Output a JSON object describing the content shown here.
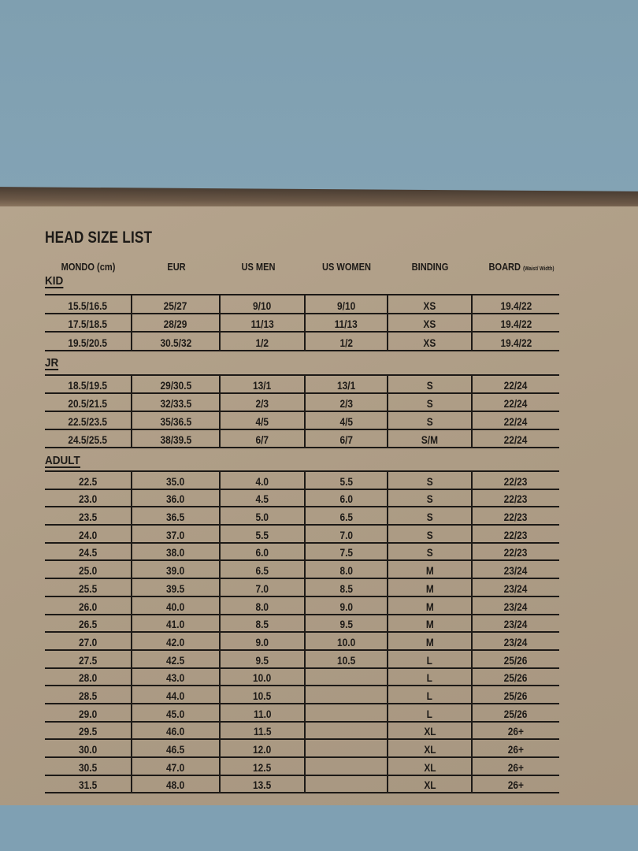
{
  "title": "HEAD SIZE LIST",
  "headers": [
    "MONDO (cm)",
    "EUR",
    "US MEN",
    "US WOMEN",
    "BINDING",
    "BOARD"
  ],
  "board_subheader": "(Waist/ Width)",
  "sections": [
    {
      "label": "KID",
      "rows": [
        [
          "15.5/16.5",
          "25/27",
          "9/10",
          "9/10",
          "XS",
          "19.4/22"
        ],
        [
          "17.5/18.5",
          "28/29",
          "11/13",
          "11/13",
          "XS",
          "19.4/22"
        ],
        [
          "19.5/20.5",
          "30.5/32",
          "1/2",
          "1/2",
          "XS",
          "19.4/22"
        ]
      ]
    },
    {
      "label": "JR",
      "rows": [
        [
          "18.5/19.5",
          "29/30.5",
          "13/1",
          "13/1",
          "S",
          "22/24"
        ],
        [
          "20.5/21.5",
          "32/33.5",
          "2/3",
          "2/3",
          "S",
          "22/24"
        ],
        [
          "22.5/23.5",
          "35/36.5",
          "4/5",
          "4/5",
          "S",
          "22/24"
        ],
        [
          "24.5/25.5",
          "38/39.5",
          "6/7",
          "6/7",
          "S/M",
          "22/24"
        ]
      ]
    },
    {
      "label": "ADULT",
      "rows": [
        [
          "22.5",
          "35.0",
          "4.0",
          "5.5",
          "S",
          "22/23"
        ],
        [
          "23.0",
          "36.0",
          "4.5",
          "6.0",
          "S",
          "22/23"
        ],
        [
          "23.5",
          "36.5",
          "5.0",
          "6.5",
          "S",
          "22/23"
        ],
        [
          "24.0",
          "37.0",
          "5.5",
          "7.0",
          "S",
          "22/23"
        ],
        [
          "24.5",
          "38.0",
          "6.0",
          "7.5",
          "S",
          "22/23"
        ],
        [
          "25.0",
          "39.0",
          "6.5",
          "8.0",
          "M",
          "23/24"
        ],
        [
          "25.5",
          "39.5",
          "7.0",
          "8.5",
          "M",
          "23/24"
        ],
        [
          "26.0",
          "40.0",
          "8.0",
          "9.0",
          "M",
          "23/24"
        ],
        [
          "26.5",
          "41.0",
          "8.5",
          "9.5",
          "M",
          "23/24"
        ],
        [
          "27.0",
          "42.0",
          "9.0",
          "10.0",
          "M",
          "23/24"
        ],
        [
          "27.5",
          "42.5",
          "9.5",
          "10.5",
          "L",
          "25/26"
        ],
        [
          "28.0",
          "43.0",
          "10.0",
          "",
          "L",
          "25/26"
        ],
        [
          "28.5",
          "44.0",
          "10.5",
          "",
          "L",
          "25/26"
        ],
        [
          "29.0",
          "45.0",
          "11.0",
          "",
          "L",
          "25/26"
        ],
        [
          "29.5",
          "46.0",
          "11.5",
          "",
          "XL",
          "26+"
        ],
        [
          "30.0",
          "46.5",
          "12.0",
          "",
          "XL",
          "26+"
        ],
        [
          "30.5",
          "47.0",
          "12.5",
          "",
          "XL",
          "26+"
        ],
        [
          "31.5",
          "48.0",
          "13.5",
          "",
          "XL",
          "26+"
        ]
      ]
    }
  ]
}
